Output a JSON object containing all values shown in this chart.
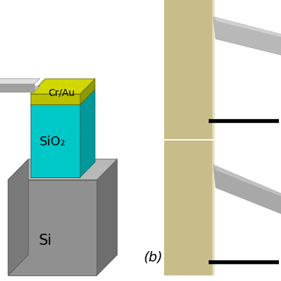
{
  "fig_width": 4.04,
  "fig_height": 4.04,
  "fig_dpi": 100,
  "bg_color": "#ffffff",
  "si_label": "Si",
  "sio2_label": "SiO₂",
  "crau_label": "Cr/Au",
  "si_front": "#909090",
  "si_side": "#6e6e6e",
  "si_top": "#b8b8b8",
  "si_inner_left": "#7a7a7a",
  "si_inner_back": "#888888",
  "sio2_front": "#00c8c8",
  "sio2_side": "#009898",
  "sio2_top": "#00dede",
  "crau_front": "#b8c000",
  "crau_side": "#909800",
  "crau_top": "#d0d800",
  "wire_top": "#e0e0e0",
  "wire_bot": "#c0c0c0",
  "wire_side": "#a0a0a0",
  "sem_top_bg": "#a8bcc8",
  "sem_top_substrate": "#c8bc88",
  "sem_top_wire": "#b8b8b8",
  "sem_top_wire2": "#d0d0d0",
  "sem_bot_bg": "#a8bcc8",
  "sem_bot_substrate": "#c8bc88",
  "sem_bot_wire": "#a8a8a8",
  "sem_bot_wire2": "#c0c0c0",
  "label_b_text": "(b)",
  "label_b_fontsize": 14
}
